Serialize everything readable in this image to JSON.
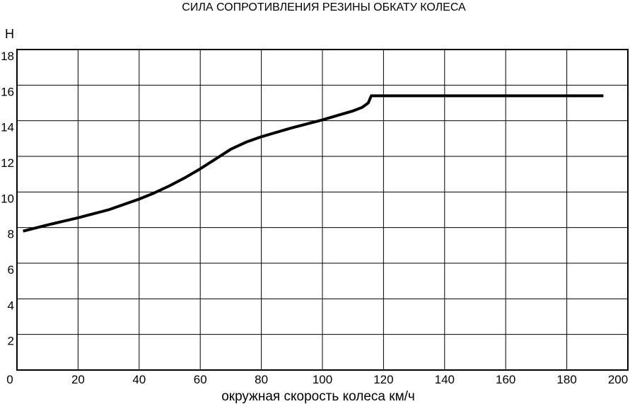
{
  "chart_data": {
    "type": "line",
    "title": "СИЛА СОПРОТИВЛЕНИЯ РЕЗИНЫ ОБКАТУ КОЛЕСА",
    "ylabel": "Н",
    "xlabel": "окружная скорость колеса км/ч",
    "xlim": [
      0,
      200
    ],
    "ylim": [
      0,
      18
    ],
    "x_ticks": [
      "0",
      "20",
      "40",
      "60",
      "80",
      "100",
      "120",
      "140",
      "160",
      "180",
      "200"
    ],
    "y_ticks": [
      "2",
      "4",
      "6",
      "8",
      "10",
      "12",
      "14",
      "16",
      "18"
    ],
    "grid": true,
    "series": [
      {
        "x": [
          2,
          10,
          20,
          30,
          40,
          45,
          50,
          55,
          60,
          65,
          70,
          75,
          80,
          90,
          100,
          105,
          110,
          113,
          115,
          116,
          116,
          130,
          150,
          170,
          192
        ],
        "y": [
          7.8,
          8.15,
          8.55,
          9.0,
          9.6,
          9.95,
          10.35,
          10.8,
          11.3,
          11.85,
          12.4,
          12.8,
          13.1,
          13.6,
          14.05,
          14.3,
          14.55,
          14.75,
          15.0,
          15.4,
          15.4,
          15.4,
          15.4,
          15.4,
          15.4
        ]
      }
    ]
  }
}
